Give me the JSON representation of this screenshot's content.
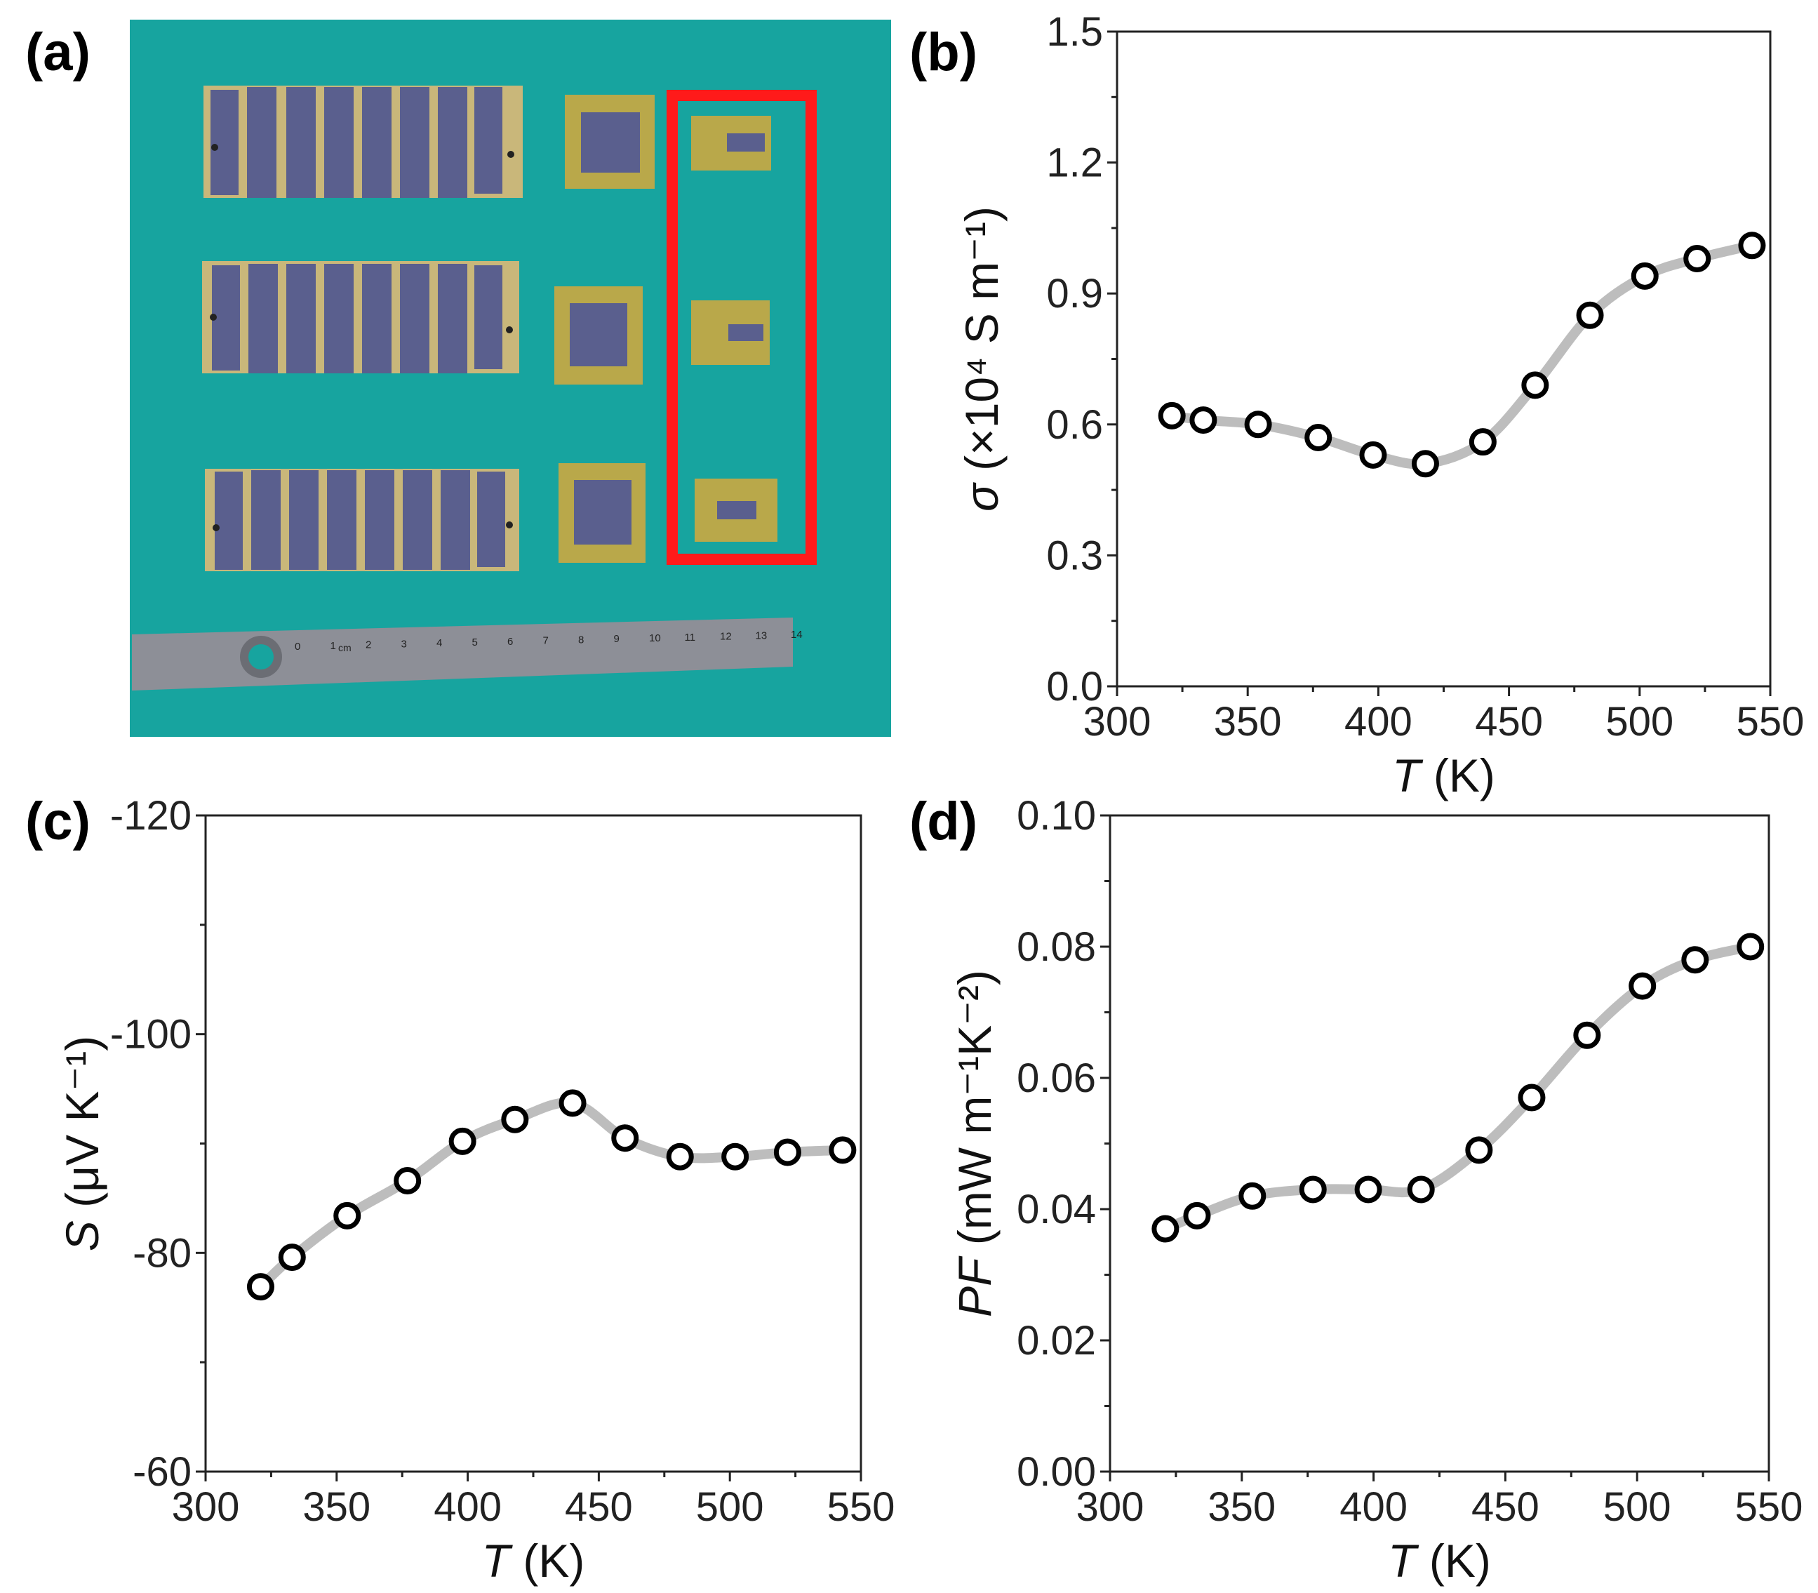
{
  "panels": {
    "a": {
      "label": "(a)"
    },
    "b": {
      "label": "(b)"
    },
    "c": {
      "label": "(c)"
    },
    "d": {
      "label": "(d)"
    }
  },
  "photo": {
    "background_color": "#17a49f",
    "highlight_color": "#ff1a1a",
    "ruler_numbers": [
      "0",
      "1",
      "2",
      "3",
      "4",
      "5",
      "6",
      "7",
      "8",
      "9",
      "10",
      "11",
      "12",
      "13",
      "14"
    ],
    "ruler_cm_label": "cm"
  },
  "chart_data": [
    {
      "panel": "b",
      "type": "line",
      "xlabel_italic": "T",
      "xlabel_unit": " (K)",
      "ylabel_italic": "σ",
      "ylabel_unit": " (×10⁴ S m⁻¹)",
      "xlim": [
        300,
        550
      ],
      "ylim": [
        0.0,
        1.5
      ],
      "xticks": [
        "300",
        "350",
        "400",
        "450",
        "500",
        "550"
      ],
      "yticks": [
        "0.0",
        "0.3",
        "0.6",
        "0.9",
        "1.2",
        "1.5"
      ],
      "x": [
        321,
        333,
        354,
        377,
        398,
        418,
        440,
        460,
        481,
        502,
        522,
        543
      ],
      "y": [
        0.62,
        0.61,
        0.6,
        0.57,
        0.53,
        0.51,
        0.56,
        0.69,
        0.85,
        0.94,
        0.98,
        1.01
      ]
    },
    {
      "panel": "c",
      "type": "line",
      "xlabel_italic": "T",
      "xlabel_unit": " (K)",
      "ylabel_italic": "S",
      "ylabel_unit": " (μV K⁻¹)",
      "xlim": [
        300,
        550
      ],
      "ylim": [
        -60,
        -120
      ],
      "xticks": [
        "300",
        "350",
        "400",
        "450",
        "500",
        "550"
      ],
      "yticks": [
        "-60",
        "-80",
        "-100",
        "-120"
      ],
      "x": [
        321,
        333,
        354,
        377,
        398,
        418,
        440,
        460,
        481,
        502,
        522,
        543
      ],
      "y": [
        -76.9,
        -79.6,
        -83.4,
        -86.6,
        -90.2,
        -92.2,
        -93.7,
        -90.5,
        -88.8,
        -88.8,
        -89.2,
        -89.4
      ]
    },
    {
      "panel": "d",
      "type": "line",
      "xlabel_italic": "T",
      "xlabel_unit": " (K)",
      "ylabel_italic": "PF",
      "ylabel_unit": " (mW m⁻¹K⁻²)",
      "xlim": [
        300,
        550
      ],
      "ylim": [
        0.0,
        0.1
      ],
      "xticks": [
        "300",
        "350",
        "400",
        "450",
        "500",
        "550"
      ],
      "yticks": [
        "0.00",
        "0.02",
        "0.04",
        "0.06",
        "0.08",
        "0.10"
      ],
      "x": [
        321,
        333,
        354,
        377,
        398,
        418,
        440,
        460,
        481,
        502,
        522,
        543
      ],
      "y": [
        0.037,
        0.039,
        0.042,
        0.043,
        0.043,
        0.043,
        0.049,
        0.057,
        0.0665,
        0.074,
        0.078,
        0.08
      ]
    }
  ]
}
